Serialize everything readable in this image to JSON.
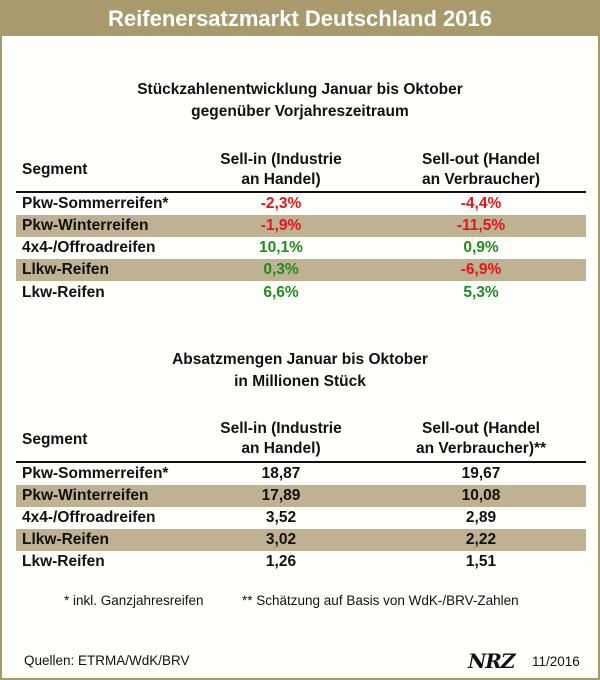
{
  "title": "Reifenersatzmarkt Deutschland 2016",
  "section1": {
    "heading_line1": "Stückzahlenentwicklung Januar bis Oktober",
    "heading_line2": "gegenüber Vorjahreszeitraum",
    "col_segment": "Segment",
    "col_sellin_line1": "Sell-in (Industrie",
    "col_sellin_line2": "an Handel)",
    "col_sellout_line1": "Sell-out (Handel",
    "col_sellout_line2": "an Verbraucher)",
    "rows": [
      {
        "segment": "Pkw-Sommerreifen*",
        "sell_in": "-2,3%",
        "sell_out": "-4,4%"
      },
      {
        "segment": "Pkw-Winterreifen",
        "sell_in": "-1,9%",
        "sell_out": "-11,5%"
      },
      {
        "segment": "4x4-/Offroadreifen",
        "sell_in": "10,1%",
        "sell_out": "0,9%"
      },
      {
        "segment": "Llkw-Reifen",
        "sell_in": "0,3%",
        "sell_out": "-6,9%"
      },
      {
        "segment": "Lkw-Reifen",
        "sell_in": "6,6%",
        "sell_out": "5,3%"
      }
    ]
  },
  "section2": {
    "heading_line1": "Absatzmengen Januar bis Oktober",
    "heading_line2": "in Millionen Stück",
    "col_segment": "Segment",
    "col_sellin_line1": "Sell-in (Industrie",
    "col_sellin_line2": "an Handel)",
    "col_sellout_line1": "Sell-out (Handel",
    "col_sellout_line2": "an Verbraucher)**",
    "rows": [
      {
        "segment": "Pkw-Sommerreifen*",
        "sell_in": "18,87",
        "sell_out": "19,67"
      },
      {
        "segment": "Pkw-Winterreifen",
        "sell_in": "17,89",
        "sell_out": "10,08"
      },
      {
        "segment": "4x4-/Offroadreifen",
        "sell_in": "3,52",
        "sell_out": "2,89"
      },
      {
        "segment": "Llkw-Reifen",
        "sell_in": "3,02",
        "sell_out": "2,22"
      },
      {
        "segment": "Lkw-Reifen",
        "sell_in": "1,26",
        "sell_out": "1,51"
      }
    ]
  },
  "footnote1": "* inkl. Ganzjahresreifen",
  "footnote2": "** Schätzung auf Basis von WdK-/BRV-Zahlen",
  "source": "Quellen: ETRMA/WdK/BRV",
  "logo": "NRZ",
  "date": "11/2016",
  "colors": {
    "negative": "#e8141b",
    "positive": "#1f8c1f",
    "band": "#bfb292",
    "banner": "#a89a6c"
  }
}
